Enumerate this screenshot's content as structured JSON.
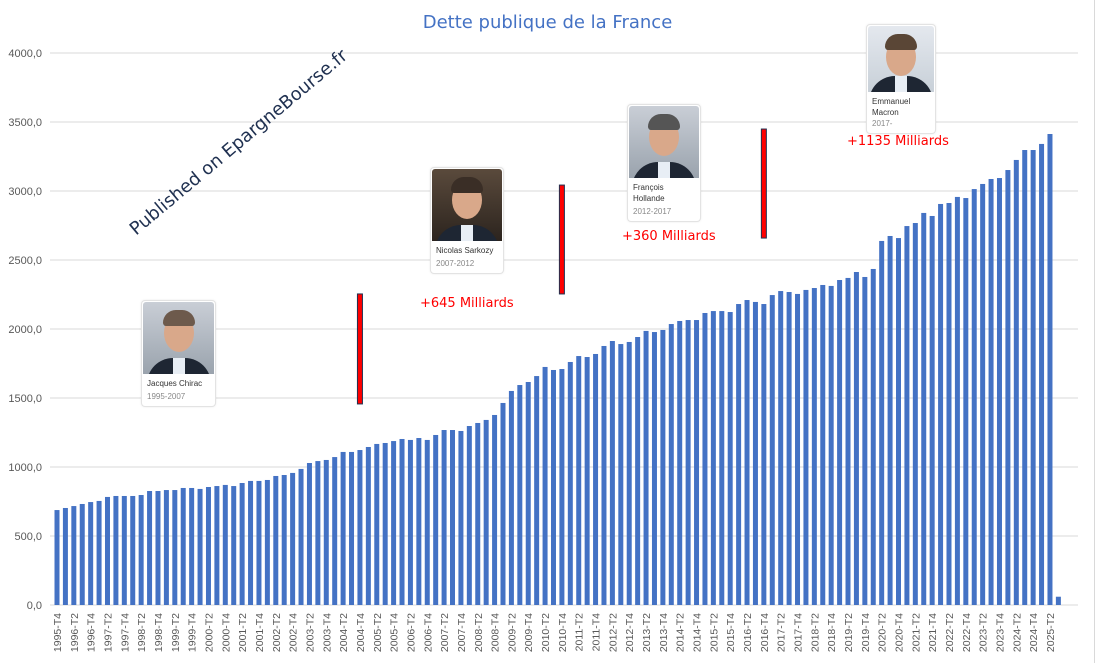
{
  "chart_data": {
    "type": "bar",
    "title": "Dette publique de la France",
    "xlabel": "",
    "ylabel": "",
    "ylim": [
      0,
      4000
    ],
    "yticks": [
      "0,0",
      "500,0",
      "1000,0",
      "1500,0",
      "2000,0",
      "2500,0",
      "3000,0",
      "3500,0",
      "4000,0"
    ],
    "grid": true,
    "bar_color": "#4472c4",
    "start_year": 1995,
    "start_quarter": 4,
    "values": [
      688,
      703,
      717,
      732,
      746,
      754,
      783,
      790,
      790,
      790,
      797,
      826,
      826,
      833,
      833,
      848,
      848,
      841,
      855,
      862,
      870,
      862,
      884,
      899,
      899,
      906,
      935,
      942,
      957,
      986,
      1029,
      1043,
      1051,
      1072,
      1109,
      1109,
      1123,
      1145,
      1167,
      1174,
      1188,
      1203,
      1196,
      1210,
      1196,
      1232,
      1268,
      1268,
      1261,
      1297,
      1319,
      1341,
      1377,
      1464,
      1551,
      1594,
      1616,
      1659,
      1725,
      1703,
      1710,
      1761,
      1804,
      1797,
      1819,
      1877,
      1913,
      1891,
      1906,
      1942,
      1986,
      1978,
      1993,
      2036,
      2058,
      2065,
      2065,
      2116,
      2130,
      2130,
      2123,
      2181,
      2210,
      2196,
      2181,
      2246,
      2275,
      2268,
      2254,
      2283,
      2297,
      2319,
      2312,
      2355,
      2370,
      2413,
      2377,
      2435,
      2638,
      2674,
      2659,
      2746,
      2768,
      2841,
      2819,
      2906,
      2913,
      2957,
      2949,
      3014,
      3051,
      3087,
      3094,
      3152,
      3225,
      3297,
      3297,
      3341,
      3413,
      60
    ],
    "categories_note_labels": "every second quarter labelled"
  },
  "watermark": "Published on EpargneBourse.fr",
  "annotations": [
    {
      "text": "+645 Milliards",
      "color": "#ff0000",
      "bar_index": 36,
      "low": 1457,
      "high": 2254
    },
    {
      "text": "+360 Milliards",
      "color": "#ff0000",
      "bar_index": 60,
      "low": 2254,
      "high": 3043
    },
    {
      "text": "+1135 Milliards",
      "color": "#ff0000",
      "bar_index": 84,
      "low": 2659,
      "high": 3449
    }
  ],
  "presidents": [
    {
      "name": "Jacques Chirac",
      "years": "1995-2007"
    },
    {
      "name": "Nicolas Sarkozy",
      "years": "2007-2012"
    },
    {
      "name": "François Hollande",
      "years": "2012-2017"
    },
    {
      "name": "Emmanuel Macron",
      "years": "2017-"
    }
  ]
}
